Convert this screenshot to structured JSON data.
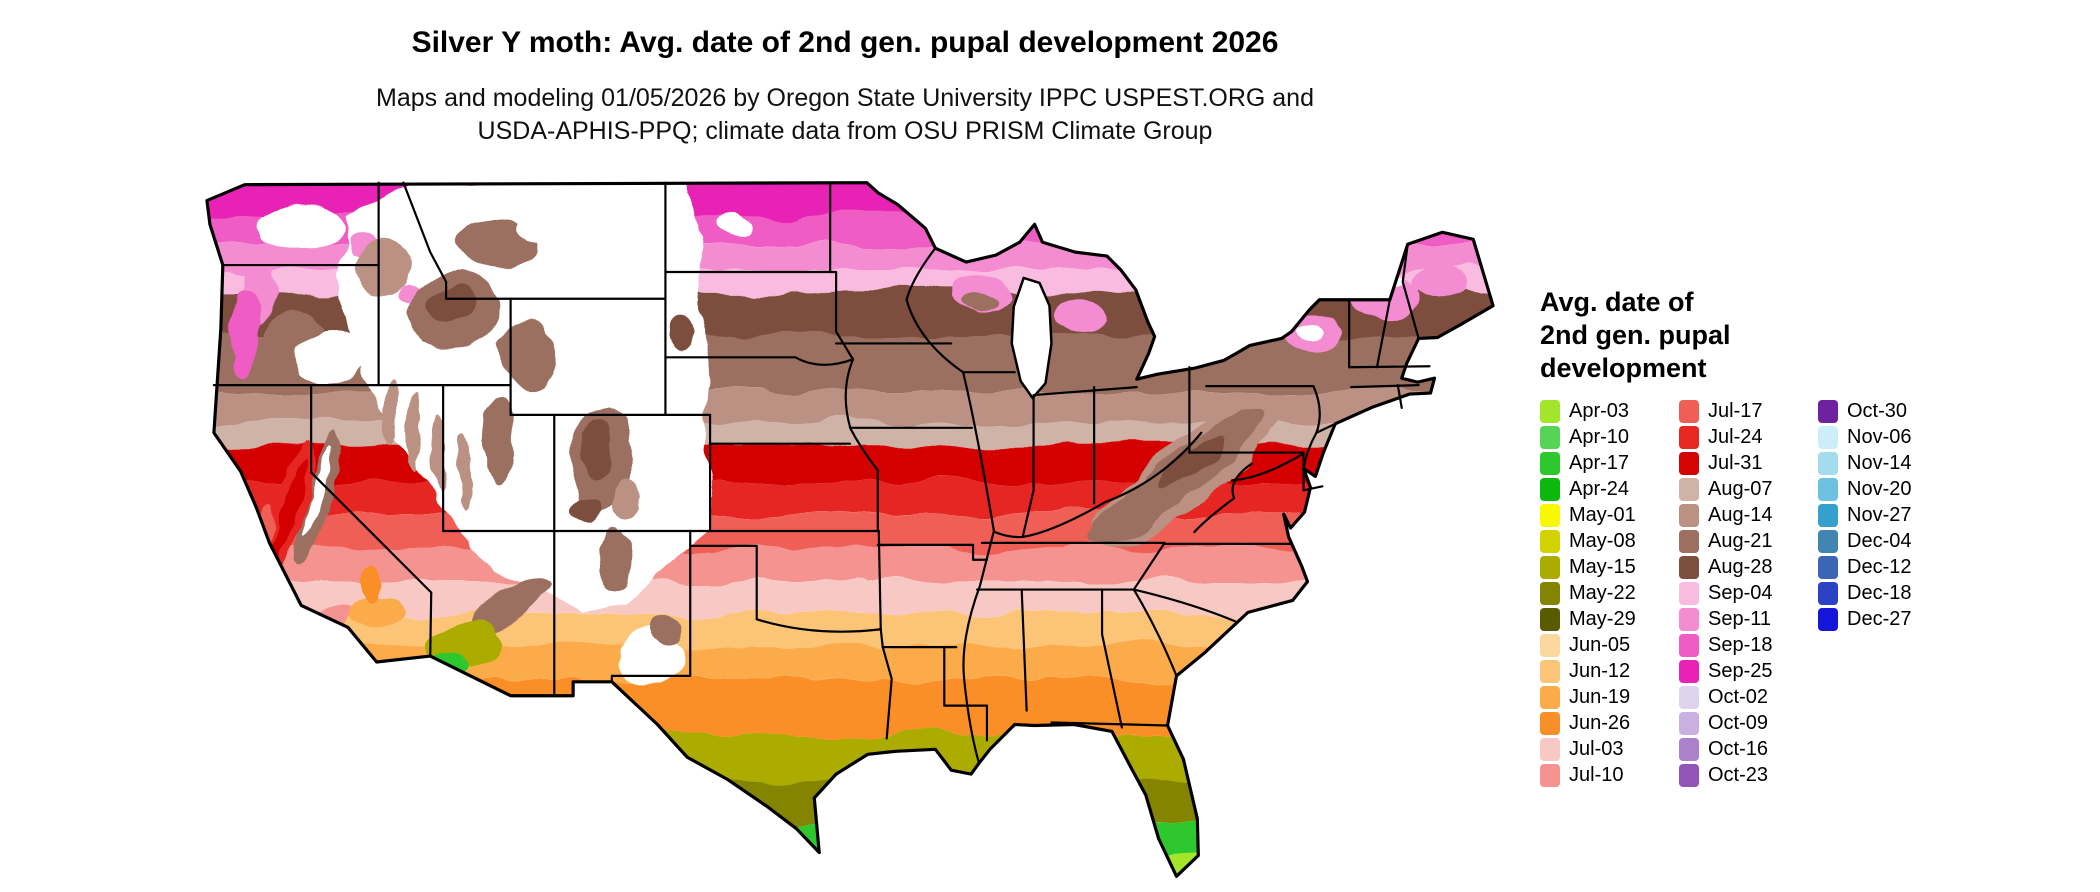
{
  "header": {
    "title": "Silver Y moth: Avg. date of 2nd gen. pupal development 2026",
    "subtitle_line1": "Maps and modeling 01/05/2026 by Oregon State University IPPC USPEST.ORG and",
    "subtitle_line2": "USDA-APHIS-PPQ; climate data from OSU PRISM Climate Group"
  },
  "map": {
    "region": "Continental United States",
    "type": "choropleth",
    "variable": "Avg. date of 2nd gen. pupal development",
    "no_data_color": "#ffffff"
  },
  "legend": {
    "title_lines": [
      "Avg. date of",
      "2nd gen. pupal",
      "development"
    ],
    "columns": [
      [
        {
          "label": "Apr-03",
          "color": "#a2e52b"
        },
        {
          "label": "Apr-10",
          "color": "#55d455"
        },
        {
          "label": "Apr-17",
          "color": "#2ec82e"
        },
        {
          "label": "Apr-24",
          "color": "#0bb80b"
        },
        {
          "label": "May-01",
          "color": "#f8f800"
        },
        {
          "label": "May-08",
          "color": "#d2d200"
        },
        {
          "label": "May-15",
          "color": "#acac00"
        },
        {
          "label": "May-22",
          "color": "#848400"
        },
        {
          "label": "May-29",
          "color": "#5a5a00"
        },
        {
          "label": "Jun-05",
          "color": "#fcd79e"
        },
        {
          "label": "Jun-12",
          "color": "#fcc476"
        },
        {
          "label": "Jun-19",
          "color": "#fcab4b"
        },
        {
          "label": "Jun-26",
          "color": "#f98f28"
        },
        {
          "label": "Jul-03",
          "color": "#f8c9c4"
        },
        {
          "label": "Jul-10",
          "color": "#f49390"
        }
      ],
      [
        {
          "label": "Jul-17",
          "color": "#ef5f56"
        },
        {
          "label": "Jul-24",
          "color": "#e62722"
        },
        {
          "label": "Jul-31",
          "color": "#d40404"
        },
        {
          "label": "Aug-07",
          "color": "#cfb3a6"
        },
        {
          "label": "Aug-14",
          "color": "#bb9183"
        },
        {
          "label": "Aug-21",
          "color": "#9c6f60"
        },
        {
          "label": "Aug-28",
          "color": "#7d4d3e"
        },
        {
          "label": "Sep-04",
          "color": "#f9bce0"
        },
        {
          "label": "Sep-11",
          "color": "#f48cd1"
        },
        {
          "label": "Sep-18",
          "color": "#ef5cc3"
        },
        {
          "label": "Sep-25",
          "color": "#e922b6"
        },
        {
          "label": "Oct-02",
          "color": "#e0d3ee"
        },
        {
          "label": "Oct-09",
          "color": "#c9b0e0"
        },
        {
          "label": "Oct-16",
          "color": "#ab81cc"
        },
        {
          "label": "Oct-23",
          "color": "#9155b8"
        }
      ],
      [
        {
          "label": "Oct-30",
          "color": "#6f22a0"
        },
        {
          "label": "Nov-06",
          "color": "#cdeef8"
        },
        {
          "label": "Nov-14",
          "color": "#a3dcef"
        },
        {
          "label": "Nov-20",
          "color": "#6cc2e0"
        },
        {
          "label": "Nov-27",
          "color": "#35a0cc"
        },
        {
          "label": "Dec-04",
          "color": "#4184b2"
        },
        {
          "label": "Dec-12",
          "color": "#3b66b4"
        },
        {
          "label": "Dec-18",
          "color": "#2c42c4"
        },
        {
          "label": "Dec-27",
          "color": "#1616da"
        }
      ]
    ]
  }
}
